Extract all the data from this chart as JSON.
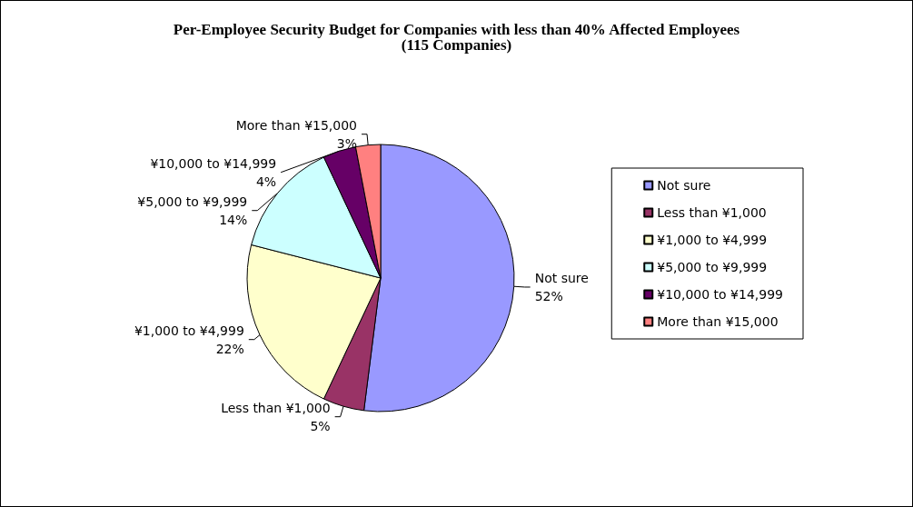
{
  "chart_data": {
    "type": "pie",
    "title": "Per-Employee Security Budget for Companies with less than 40% Affected Employees",
    "subtitle": "(115 Companies)",
    "categories": [
      "Not sure",
      "Less than ¥1,000",
      "¥1,000 to ¥4,999",
      "¥5,000 to ¥9,999",
      "¥10,000 to ¥14,999",
      "More than ¥15,000"
    ],
    "values": [
      52,
      5,
      22,
      14,
      4,
      3
    ],
    "colors": [
      "#9999ff",
      "#993366",
      "#ffffcc",
      "#ccffff",
      "#660066",
      "#ff8080"
    ],
    "value_labels": [
      "52%",
      "5%",
      "22%",
      "14%",
      "4%",
      "3%"
    ],
    "legend": "right"
  }
}
